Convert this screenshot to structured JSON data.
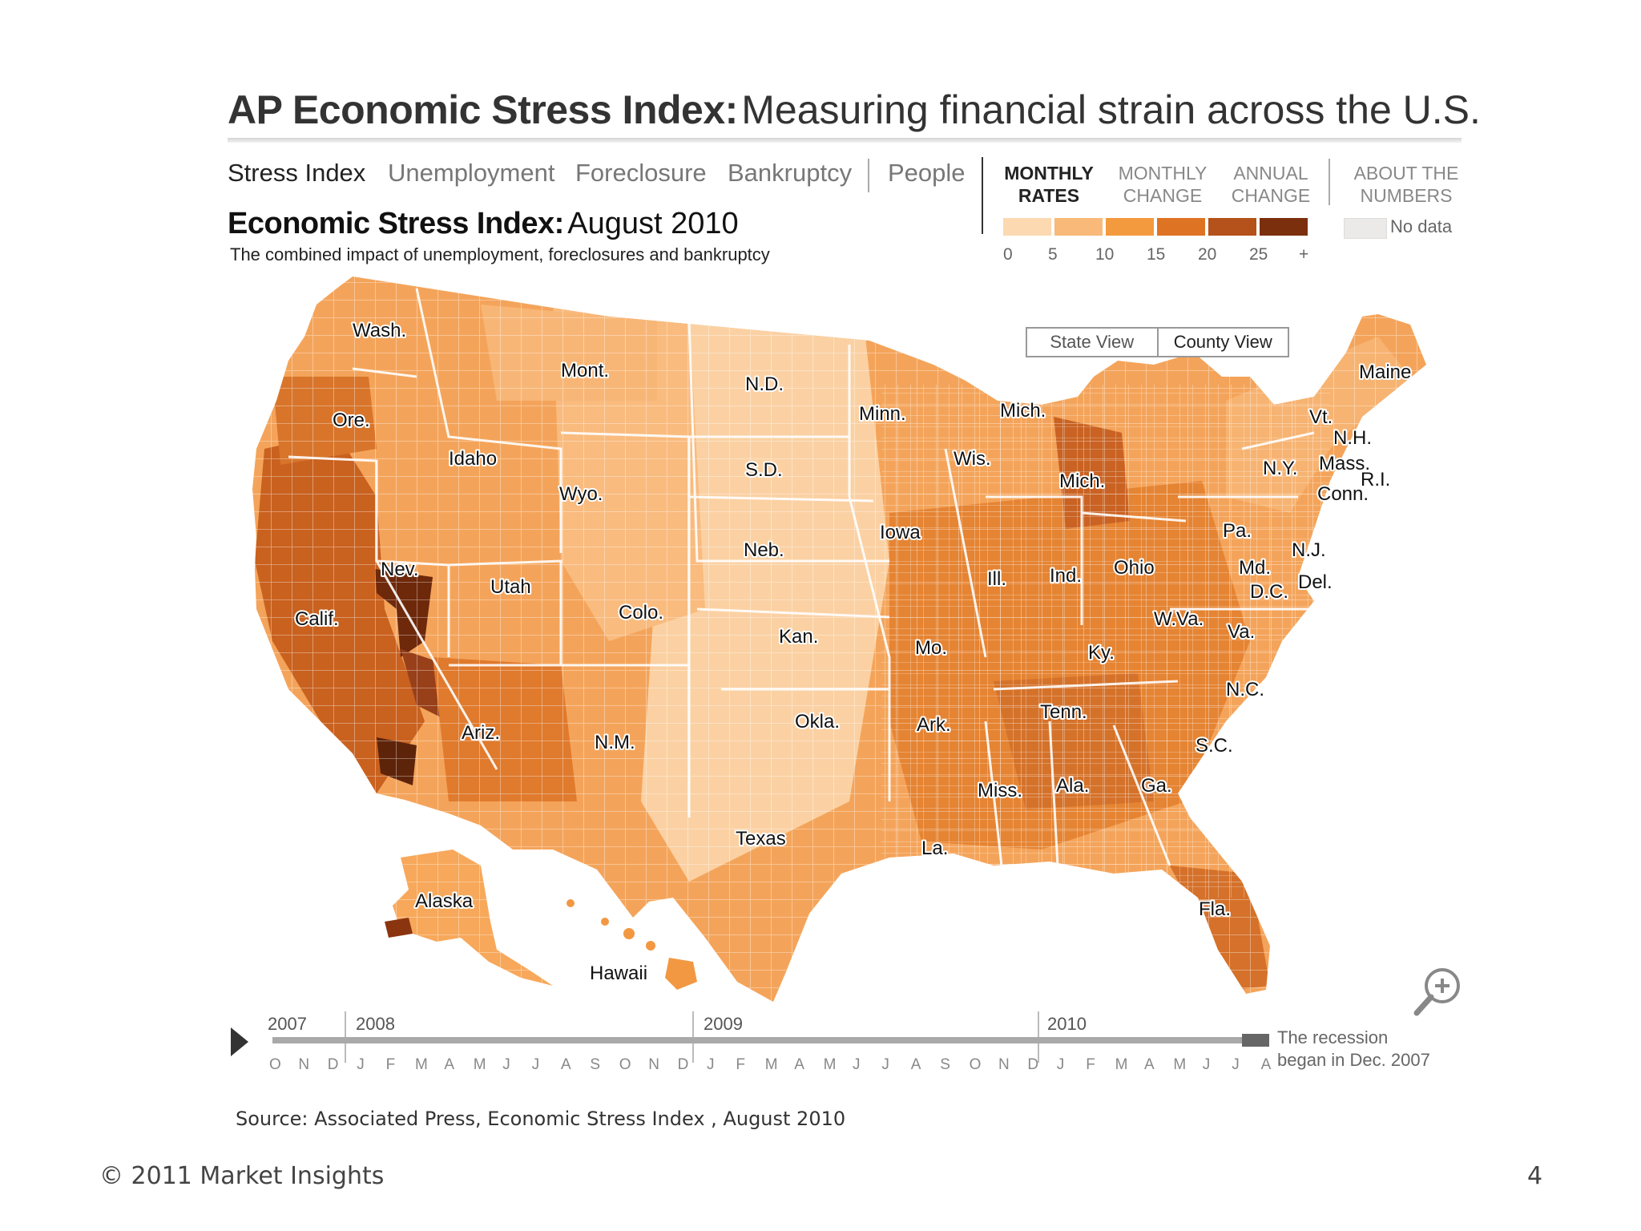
{
  "header": {
    "title_bold": "AP Economic Stress Index:",
    "title_rest": "Measuring financial strain across the U.S."
  },
  "tabs": [
    {
      "label": "Stress Index",
      "active": true
    },
    {
      "label": "Unemployment",
      "active": false
    },
    {
      "label": "Foreclosure",
      "active": false
    },
    {
      "label": "Bankruptcy",
      "active": false
    },
    {
      "label": "People",
      "active": false
    }
  ],
  "modes": {
    "monthly_rates": [
      "MONTHLY",
      "RATES"
    ],
    "monthly_change": [
      "MONTHLY",
      "CHANGE"
    ],
    "annual_change": [
      "ANNUAL",
      "CHANGE"
    ],
    "about": [
      "ABOUT THE",
      "NUMBERS"
    ]
  },
  "legend": {
    "colors": [
      "#fcd9b1",
      "#f9b978",
      "#f39a3e",
      "#de7323",
      "#b5511a",
      "#7c2f0c"
    ],
    "ticks": [
      "0",
      "5",
      "10",
      "15",
      "20",
      "25",
      "+"
    ],
    "no_data_label": "No data",
    "no_data_color": "#eceae8"
  },
  "map": {
    "title_bold": "Economic Stress Index:",
    "title_rest": "August 2010",
    "subtitle": "The combined impact of unemployment, foreclosures and bankruptcy",
    "view_toggle": [
      "State View",
      "County View"
    ],
    "zoom_icon": "zoom-in-icon",
    "state_labels": [
      "Wash.",
      "Ore.",
      "Calif.",
      "Nev.",
      "Idaho",
      "Mont.",
      "Wyo.",
      "Utah",
      "Ariz.",
      "Colo.",
      "N.M.",
      "N.D.",
      "S.D.",
      "Neb.",
      "Kan.",
      "Okla.",
      "Texas",
      "Minn.",
      "Iowa",
      "Mo.",
      "Ark.",
      "La.",
      "Wis.",
      "Ill.",
      "Mich.",
      "Mich.",
      "Ind.",
      "Ohio",
      "Ky.",
      "Tenn.",
      "Miss.",
      "Ala.",
      "Ga.",
      "Fla.",
      "S.C.",
      "N.C.",
      "Va.",
      "W.Va.",
      "Pa.",
      "N.Y.",
      "Vt.",
      "N.H.",
      "Maine",
      "Mass.",
      "R.I.",
      "Conn.",
      "N.J.",
      "Md.",
      "Del.",
      "D.C.",
      "Alaska",
      "Hawaii"
    ]
  },
  "timeline": {
    "years": [
      "2007",
      "2008",
      "2009",
      "2010"
    ],
    "months": [
      "O",
      "N",
      "D",
      "J",
      "F",
      "M",
      "A",
      "M",
      "J",
      "J",
      "A",
      "S",
      "O",
      "N",
      "D",
      "J",
      "F",
      "M",
      "A",
      "M",
      "J",
      "J",
      "A",
      "S",
      "O",
      "N",
      "D",
      "J",
      "F",
      "M",
      "A",
      "M",
      "J",
      "J",
      "A"
    ],
    "current": "2010 August",
    "note_line1": "The recession",
    "note_line2": "began in Dec. 2007",
    "play_icon": "play-icon"
  },
  "source": "Source: Associated Press, Economic Stress Index , August 2010",
  "footer": {
    "copyright": "© 2011 Market Insights",
    "page_number": "4"
  }
}
